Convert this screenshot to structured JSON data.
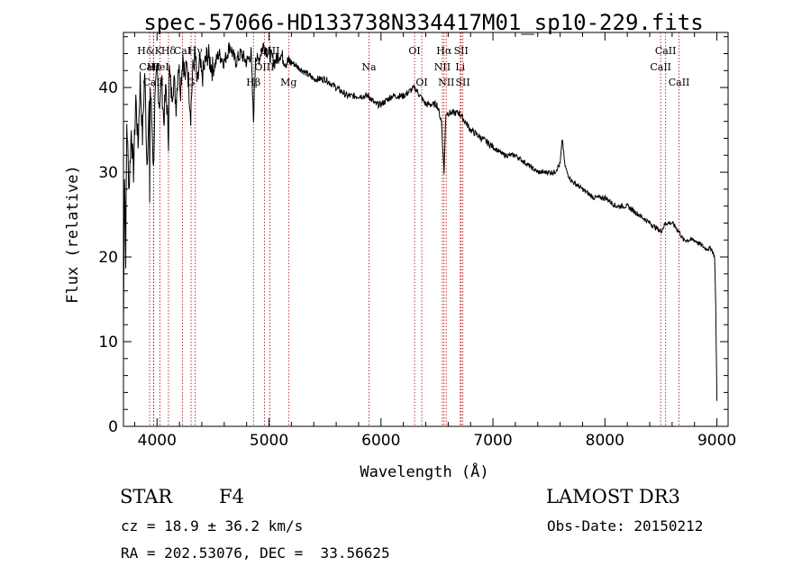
{
  "chart_data": {
    "type": "line",
    "title": "spec-57066-HD133738N334417M01_sp10-229.fits",
    "xlabel": "Wavelength (Å)",
    "ylabel": "Flux (relative)",
    "xlim": [
      3700,
      9100
    ],
    "ylim": [
      0,
      46.5
    ],
    "xticks": [
      4000,
      5000,
      6000,
      7000,
      8000,
      9000
    ],
    "yticks": [
      0,
      10,
      20,
      30,
      40
    ],
    "series": [
      {
        "name": "spectrum",
        "x": [
          3700,
          3710,
          3720,
          3730,
          3750,
          3770,
          3790,
          3810,
          3830,
          3850,
          3870,
          3890,
          3910,
          3930,
          3934,
          3940,
          3960,
          3968,
          3980,
          4000,
          4020,
          4040,
          4060,
          4080,
          4102,
          4110,
          4130,
          4150,
          4170,
          4190,
          4210,
          4230,
          4250,
          4270,
          4290,
          4300,
          4320,
          4340,
          4360,
          4380,
          4400,
          4450,
          4500,
          4550,
          4600,
          4650,
          4700,
          4750,
          4800,
          4840,
          4861,
          4880,
          4900,
          4950,
          5000,
          5050,
          5100,
          5150,
          5200,
          5300,
          5400,
          5500,
          5600,
          5700,
          5800,
          5890,
          5950,
          6000,
          6100,
          6200,
          6300,
          6400,
          6500,
          6540,
          6563,
          6580,
          6600,
          6650,
          6700,
          6750,
          6800,
          6900,
          7000,
          7100,
          7200,
          7300,
          7400,
          7500,
          7550,
          7600,
          7620,
          7640,
          7660,
          7700,
          7800,
          7900,
          8000,
          8100,
          8200,
          8300,
          8400,
          8500,
          8542,
          8600,
          8662,
          8700,
          8800,
          8900,
          8950,
          8980,
          8990,
          9000
        ],
        "y": [
          11,
          30,
          20,
          36,
          28,
          35,
          30,
          39,
          33,
          41,
          34,
          42,
          31,
          38,
          27,
          40,
          34,
          30,
          38,
          42,
          38,
          41,
          36,
          40,
          34,
          42,
          39,
          41,
          38,
          43,
          40,
          44,
          41,
          43,
          39,
          37,
          42,
          44,
          40,
          43,
          41,
          44,
          42,
          44,
          43,
          45,
          43,
          44,
          43,
          44,
          36,
          44,
          43,
          45,
          44,
          43,
          44,
          43,
          43,
          42,
          41,
          41,
          40,
          39,
          39,
          39,
          38,
          38,
          39,
          39,
          40,
          38,
          38,
          36,
          30,
          37,
          37,
          37,
          37,
          36,
          35,
          34,
          33,
          32,
          32,
          31,
          30,
          30,
          30,
          31,
          34,
          31,
          30,
          29,
          28,
          27,
          27,
          26,
          26,
          25,
          24,
          23,
          24,
          24,
          23,
          22,
          22,
          21,
          21,
          20,
          14,
          3
        ]
      }
    ],
    "spectral_lines": [
      {
        "label": "H&K",
        "wl": 3934,
        "row": 1
      },
      {
        "label": "CaII",
        "wl": 3934,
        "row": 2
      },
      {
        "label": "CaII",
        "wl": 3968,
        "row": 3
      },
      {
        "label": "Hε",
        "wl": 3970,
        "row": 2
      },
      {
        "label": "Hδ",
        "wl": 4102,
        "row": 1
      },
      {
        "label": "HeI",
        "wl": 4026,
        "row": 2
      },
      {
        "label": "G",
        "wl": 4304,
        "row": 3
      },
      {
        "label": "CaI",
        "wl": 4227,
        "row": 1
      },
      {
        "label": "Hγ",
        "wl": 4341,
        "row": 1
      },
      {
        "label": "Hβ",
        "wl": 4861,
        "row": 4
      },
      {
        "label": "OIII",
        "wl": 5007,
        "row": 1
      },
      {
        "label": "OIII",
        "wl": 4959,
        "row": 2
      },
      {
        "label": "Mg",
        "wl": 5175,
        "row": 4
      },
      {
        "label": "Na",
        "wl": 5893,
        "row": 2
      },
      {
        "label": "OI",
        "wl": 6300,
        "row": 1
      },
      {
        "label": "OI",
        "wl": 6364,
        "row": 3
      },
      {
        "label": "Hα",
        "wl": 6563,
        "row": 1
      },
      {
        "label": "NII",
        "wl": 6548,
        "row": 2
      },
      {
        "label": "NII",
        "wl": 6583,
        "row": 3
      },
      {
        "label": "SII",
        "wl": 6716,
        "row": 1
      },
      {
        "label": "SII",
        "wl": 6731,
        "row": 3
      },
      {
        "label": "Li",
        "wl": 6708,
        "row": 2
      },
      {
        "label": "CaII",
        "wl": 8542,
        "row": 1
      },
      {
        "label": "CaII",
        "wl": 8498,
        "row": 2
      },
      {
        "label": "CaII",
        "wl": 8662,
        "row": 3
      }
    ]
  },
  "info": {
    "object_type": "STAR",
    "subclass": "F4",
    "survey": "LAMOST DR3",
    "cz": "cz = 18.9 ± 36.2 km/s",
    "obs_date": "Obs-Date: 20150212",
    "coords": "RA = 202.53076, DEC =  33.56625"
  }
}
